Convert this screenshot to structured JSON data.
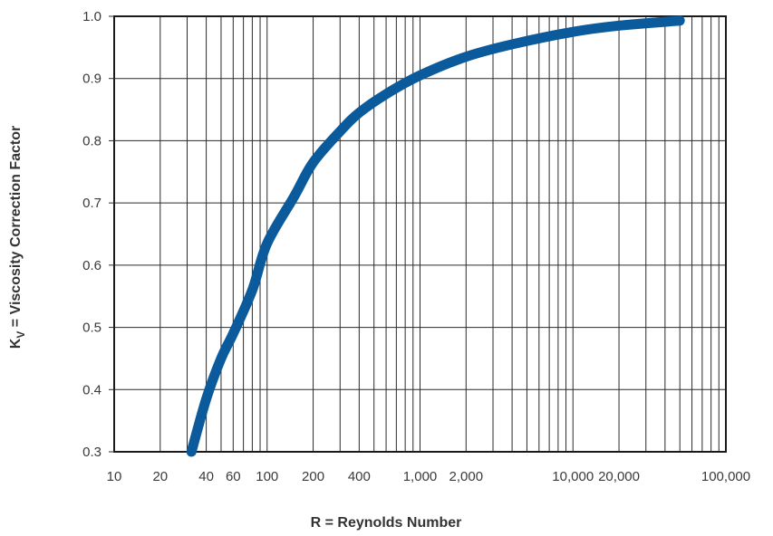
{
  "chart_data": {
    "type": "line",
    "title": "",
    "xlabel": "R = Reynolds Number",
    "ylabel": {
      "base": "K",
      "subscript": "V",
      "rest": " = Viscosity Correction Factor"
    },
    "x_scale": "log",
    "xlim": [
      10,
      100000
    ],
    "ylim": [
      0.3,
      1.0
    ],
    "grid": true,
    "legend": "none",
    "x_tick_labels": [
      {
        "value": 10,
        "label": "10"
      },
      {
        "value": 20,
        "label": "20"
      },
      {
        "value": 40,
        "label": "40"
      },
      {
        "value": 60,
        "label": "60"
      },
      {
        "value": 100,
        "label": "100"
      },
      {
        "value": 200,
        "label": "200"
      },
      {
        "value": 400,
        "label": "400"
      },
      {
        "value": 1000,
        "label": "1,000"
      },
      {
        "value": 2000,
        "label": "2,000"
      },
      {
        "value": 10000,
        "label": "10,000"
      },
      {
        "value": 20000,
        "label": "20,000"
      },
      {
        "value": 100000,
        "label": "100,000"
      }
    ],
    "y_tick_labels": [
      {
        "value": 0.3,
        "label": "0.3"
      },
      {
        "value": 0.4,
        "label": "0.4"
      },
      {
        "value": 0.5,
        "label": "0.5"
      },
      {
        "value": 0.6,
        "label": "0.6"
      },
      {
        "value": 0.7,
        "label": "0.7"
      },
      {
        "value": 0.8,
        "label": "0.8"
      },
      {
        "value": 0.9,
        "label": "0.9"
      },
      {
        "value": 1.0,
        "label": "1.0"
      }
    ],
    "series": [
      {
        "color": "#0a5a9c",
        "points": [
          {
            "x": 32,
            "y": 0.3
          },
          {
            "x": 40,
            "y": 0.385
          },
          {
            "x": 50,
            "y": 0.45
          },
          {
            "x": 60,
            "y": 0.49
          },
          {
            "x": 80,
            "y": 0.56
          },
          {
            "x": 100,
            "y": 0.635
          },
          {
            "x": 150,
            "y": 0.71
          },
          {
            "x": 200,
            "y": 0.765
          },
          {
            "x": 300,
            "y": 0.815
          },
          {
            "x": 400,
            "y": 0.845
          },
          {
            "x": 600,
            "y": 0.875
          },
          {
            "x": 1000,
            "y": 0.905
          },
          {
            "x": 2000,
            "y": 0.935
          },
          {
            "x": 4000,
            "y": 0.955
          },
          {
            "x": 10000,
            "y": 0.975
          },
          {
            "x": 20000,
            "y": 0.985
          },
          {
            "x": 50000,
            "y": 0.993
          }
        ]
      }
    ]
  }
}
